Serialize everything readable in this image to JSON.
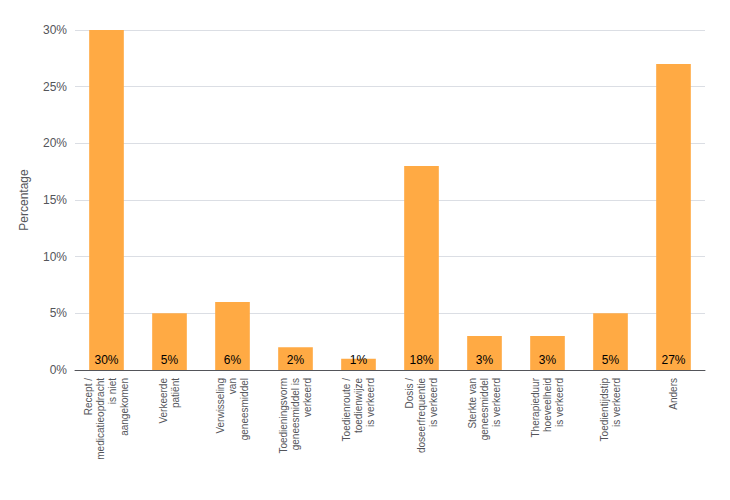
{
  "chart_data": {
    "type": "bar",
    "categories": [
      "Recept /\nmedicatieopdracht\nis niet\naangekomen",
      "Verkeerde\npatiënt",
      "Verwisseling\nvan\ngeneesmiddel",
      "Toedieningsvorm\ngeneesmiddel is\nverkeerd",
      "Toedienroute /\ntoedienwijze\nis verkeerd",
      "Dosis /\ndoseerfrequentie\nis verkeerd",
      "Sterkte van\ngeneesmiddel\nis verkeerd",
      "Therapieduur\nhoeveelheid\nis verkeerd",
      "Toedientijdstip\nis verkeerd",
      "Anders"
    ],
    "values": [
      30,
      5,
      6,
      2,
      1,
      18,
      3,
      3,
      5,
      27
    ],
    "value_labels": [
      "30%",
      "5%",
      "6%",
      "2%",
      "1%",
      "18%",
      "3%",
      "3%",
      "5%",
      "27%"
    ],
    "data_labels": true,
    "color": "#FFAA44",
    "ylabel": "Percentage",
    "ylim": [
      0,
      30
    ],
    "yticks": [
      {
        "value": 0,
        "label": "0%"
      },
      {
        "value": 5,
        "label": "5%"
      },
      {
        "value": 10,
        "label": "10%"
      },
      {
        "value": 15,
        "label": "15%"
      },
      {
        "value": 20,
        "label": "20%"
      },
      {
        "value": 25,
        "label": "25%"
      },
      {
        "value": 30,
        "label": "30%"
      }
    ],
    "grid": true
  }
}
